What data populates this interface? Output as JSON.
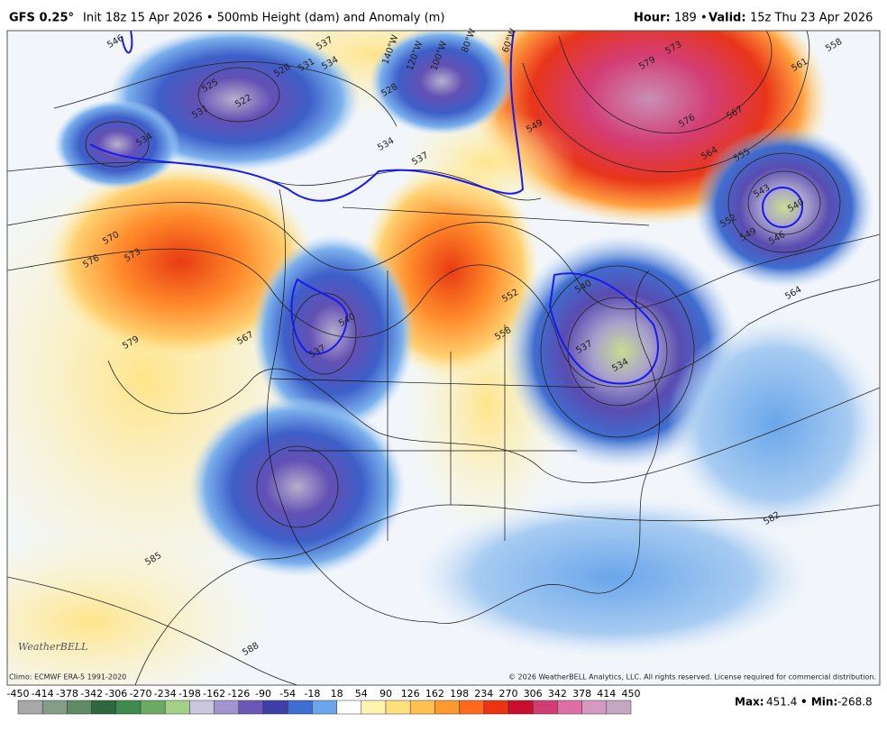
{
  "header": {
    "model": "GFS 0.25°",
    "init": "Init 18z 15 Apr 2026 • 500mb Height (dam) and Anomaly (m)",
    "hour_label": "Hour:",
    "hour": "189 •",
    "valid_label": "Valid:",
    "valid": "15z Thu 23 Apr 2026"
  },
  "map": {
    "contour_labels": [
      546,
      537,
      534,
      531,
      528,
      525,
      522,
      531,
      534,
      528,
      534,
      537,
      549,
      573,
      579,
      576,
      567,
      564,
      561,
      558,
      555,
      552,
      549,
      543,
      540,
      546,
      564,
      570,
      573,
      576,
      579,
      567,
      540,
      537,
      552,
      558,
      540,
      537,
      534,
      582,
      585,
      588
    ],
    "longitudes": [
      "140°W",
      "120°W",
      "100°W",
      "80°W",
      "60°W"
    ],
    "logo": "WeatherBELL",
    "climo": "Climo: ECMWF ERA-5 1991-2020",
    "copyright": "© 2026 WeatherBELL Analytics, LLC. All rights reserved. License required for commercial distribution."
  },
  "colorbar": {
    "ticks": [
      -450,
      -414,
      -378,
      -342,
      -306,
      -270,
      -234,
      -198,
      -162,
      -126,
      -90,
      -54,
      -18,
      18,
      54,
      90,
      126,
      162,
      198,
      234,
      270,
      306,
      342,
      378,
      414,
      450
    ],
    "colors": [
      "#a8a8a8",
      "#859c86",
      "#5f8a64",
      "#2f6840",
      "#3f8a4e",
      "#6aab62",
      "#a4cf86",
      "#c9c6de",
      "#a194cc",
      "#6a57b6",
      "#3f3fa8",
      "#3d6ed0",
      "#6aa6ea",
      "#ffffff",
      "#fff4ad",
      "#ffdf7e",
      "#ffc252",
      "#ff9a2e",
      "#ff6a1c",
      "#ec3412",
      "#c8102e",
      "#d13c72",
      "#e06ea6",
      "#d69ac2",
      "#c4a8c0"
    ]
  },
  "stats": {
    "max_label": "Max:",
    "max": 451.4,
    "min_label": "• Min:",
    "min": -268.8
  }
}
